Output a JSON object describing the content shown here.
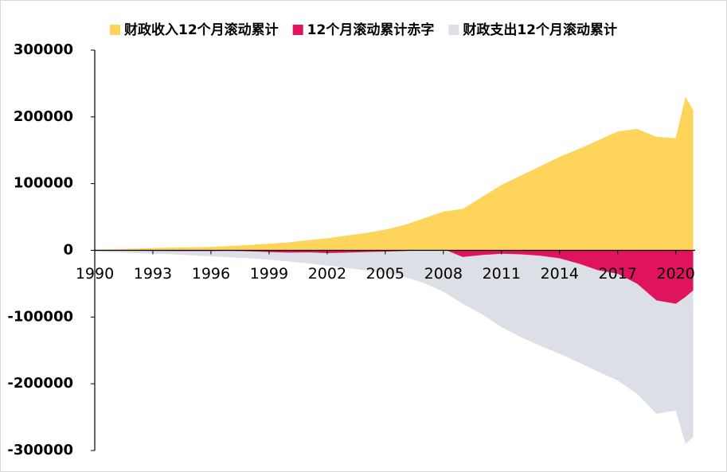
{
  "chart_data": {
    "type": "area",
    "x": [
      1990,
      1991,
      1992,
      1993,
      1994,
      1995,
      1996,
      1997,
      1998,
      1999,
      2000,
      2001,
      2002,
      2003,
      2004,
      2005,
      2006,
      2007,
      2008,
      2009,
      2010,
      2011,
      2012,
      2013,
      2014,
      2015,
      2016,
      2017,
      2018,
      2019,
      2020,
      2020.5,
      2020.9
    ],
    "series": [
      {
        "name": "财政支出12个月滚动累计",
        "color": "#dcdfe6",
        "values": [
          -2000,
          -3000,
          -4000,
          -5000,
          -6000,
          -7500,
          -9000,
          -10500,
          -12000,
          -14000,
          -16500,
          -19500,
          -23000,
          -26500,
          -30000,
          -34000,
          -40000,
          -49000,
          -62000,
          -80000,
          -96000,
          -115000,
          -130000,
          -143000,
          -155000,
          -168000,
          -182000,
          -195000,
          -215000,
          -245000,
          -240000,
          -290000,
          -280000
        ]
      },
      {
        "name": "12个月滚动累计赤字",
        "color": "#e0135f",
        "values": [
          -300,
          -500,
          -600,
          -800,
          -1000,
          -1000,
          -1000,
          -800,
          -1500,
          -2500,
          -3500,
          -3000,
          -4000,
          -3500,
          -2500,
          -2000,
          -1000,
          1000,
          2000,
          -10000,
          -7000,
          -5000,
          -6000,
          -8000,
          -12000,
          -20000,
          -30000,
          -35000,
          -50000,
          -75000,
          -80000,
          -70000,
          -60000
        ]
      },
      {
        "name": "财政收入12个月滚动累计",
        "color": "#ffd45a",
        "values": [
          1000,
          1500,
          2500,
          3500,
          4000,
          4500,
          5000,
          6500,
          8000,
          10000,
          12000,
          15000,
          18000,
          22000,
          26000,
          31000,
          38000,
          48000,
          58000,
          62000,
          80000,
          98000,
          112000,
          126000,
          140000,
          152000,
          165000,
          178000,
          182000,
          170000,
          168000,
          230000,
          210000
        ]
      }
    ],
    "xlim": [
      1990,
      2021
    ],
    "xticks": [
      1990,
      1993,
      1996,
      1999,
      2002,
      2005,
      2008,
      2011,
      2014,
      2017,
      2020
    ],
    "ylim": [
      -300000,
      300000
    ],
    "yticks": [
      -300000,
      -200000,
      -100000,
      0,
      100000,
      200000,
      300000
    ],
    "negative_tick_color": "#e00000",
    "legend": "top"
  }
}
